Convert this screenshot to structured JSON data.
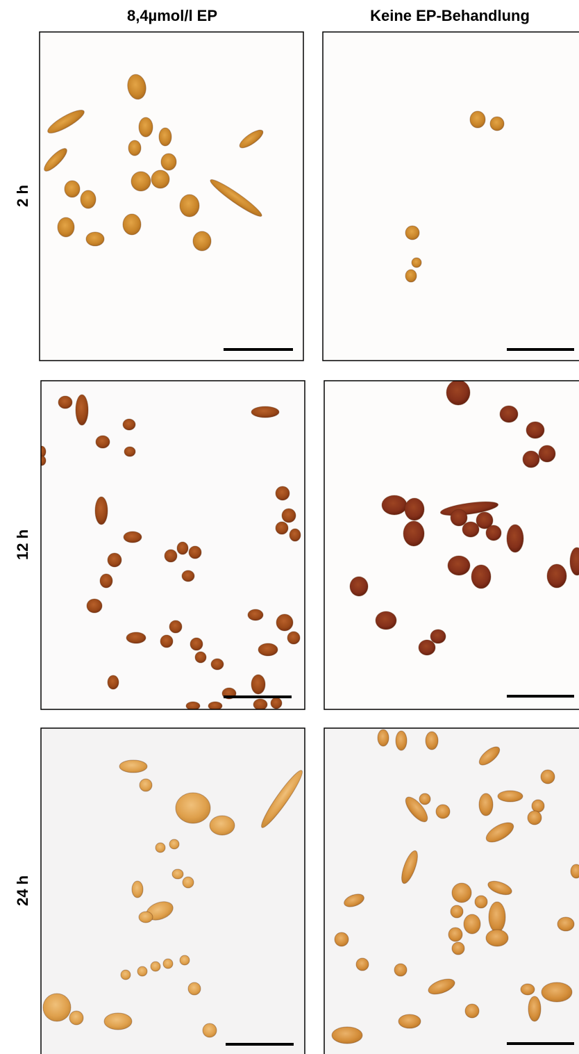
{
  "header": {
    "columns": [
      "8,4µmol/l EP",
      "Keine EP-Behandlung"
    ]
  },
  "rows": [
    "2 h",
    "12 h",
    "24 h"
  ]
}
